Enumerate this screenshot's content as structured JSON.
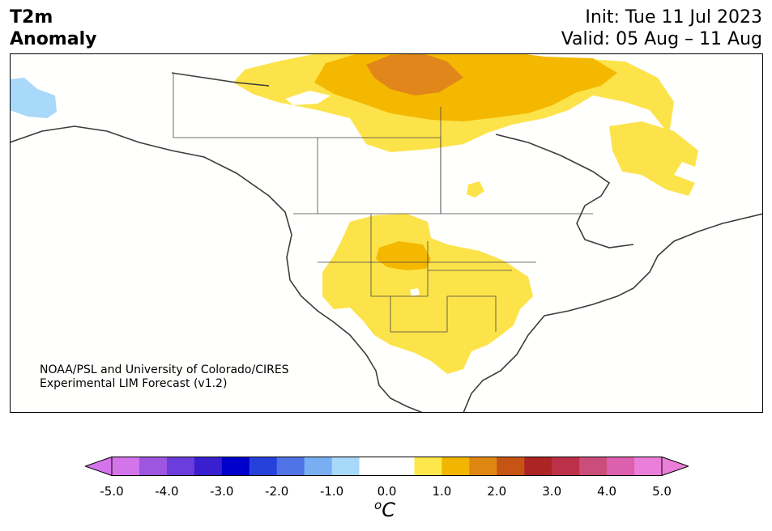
{
  "header": {
    "title_line1": "T2m",
    "title_line2": "Anomaly",
    "init": "Init: Tue 11 Jul 2023",
    "valid": "Valid: 05 Aug – 11 Aug"
  },
  "credit": {
    "line1": "NOAA/PSL and University of Colorado/CIRES",
    "line2": "Experimental LIM Forecast (v1.2)"
  },
  "colorbar": {
    "unit_superscript": "o",
    "unit_symbol": "C",
    "tick_labels": [
      "-5.0",
      "-4.0",
      "-3.0",
      "-2.0",
      "-1.0",
      "0.0",
      "1.0",
      "2.0",
      "3.0",
      "4.0",
      "5.0"
    ],
    "colors": [
      "#d474ea",
      "#9e55e0",
      "#6b3ddb",
      "#3a1fd1",
      "#0000cc",
      "#2640dc",
      "#4f73e6",
      "#78aef2",
      "#a8d8fa",
      "#ffffff",
      "#ffffff",
      "#fde74b",
      "#f2b600",
      "#de8612",
      "#c65415",
      "#ad2424",
      "#be3047",
      "#cb4d79",
      "#dd60ae",
      "#ea7ed8"
    ],
    "extend_low": "#d474ea",
    "extend_high": "#ea7ed8"
  },
  "map": {
    "region": "North America",
    "anomaly_colors": {
      "warm_1": "#fde34a",
      "warm_2": "#f4b800",
      "warm_3": "#e0861a",
      "cool_1": "#a8d8fa"
    }
  }
}
